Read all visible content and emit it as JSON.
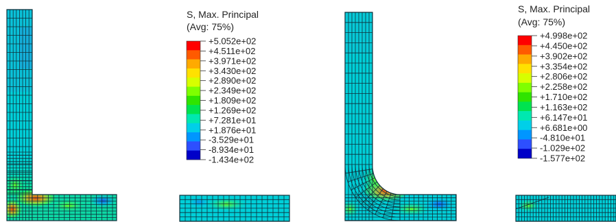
{
  "left_panel": {
    "legend": {
      "title_line1": "S, Max. Principal",
      "title_line2": "(Avg: 75%)",
      "labels": [
        "+5.052e+02",
        "+4.511e+02",
        "+3.971e+02",
        "+3.430e+02",
        "+2.890e+02",
        "+2.349e+02",
        "+1.809e+02",
        "+1.269e+02",
        "+7.281e+01",
        "+1.876e+01",
        "-3.529e+01",
        "-8.934e+01",
        "-1.434e+02"
      ]
    }
  },
  "right_panel": {
    "legend": {
      "title_line1": "S, Max. Principal",
      "title_line2": "(Avg: 75%)",
      "labels": [
        "+4.998e+02",
        "+4.450e+02",
        "+3.902e+02",
        "+3.354e+02",
        "+2.806e+02",
        "+2.258e+02",
        "+1.710e+02",
        "+1.163e+02",
        "+6.147e+01",
        "+6.681e+00",
        "-4.810e+01",
        "-1.029e+02",
        "-1.577e+02"
      ]
    }
  },
  "colormap": [
    "#ff0000",
    "#ff5a00",
    "#ffaa00",
    "#ffe100",
    "#d7ff00",
    "#7fff00",
    "#2fe400",
    "#00e34f",
    "#00e8b0",
    "#00cfe8",
    "#0096ff",
    "#2d4fff",
    "#0000c8"
  ]
}
